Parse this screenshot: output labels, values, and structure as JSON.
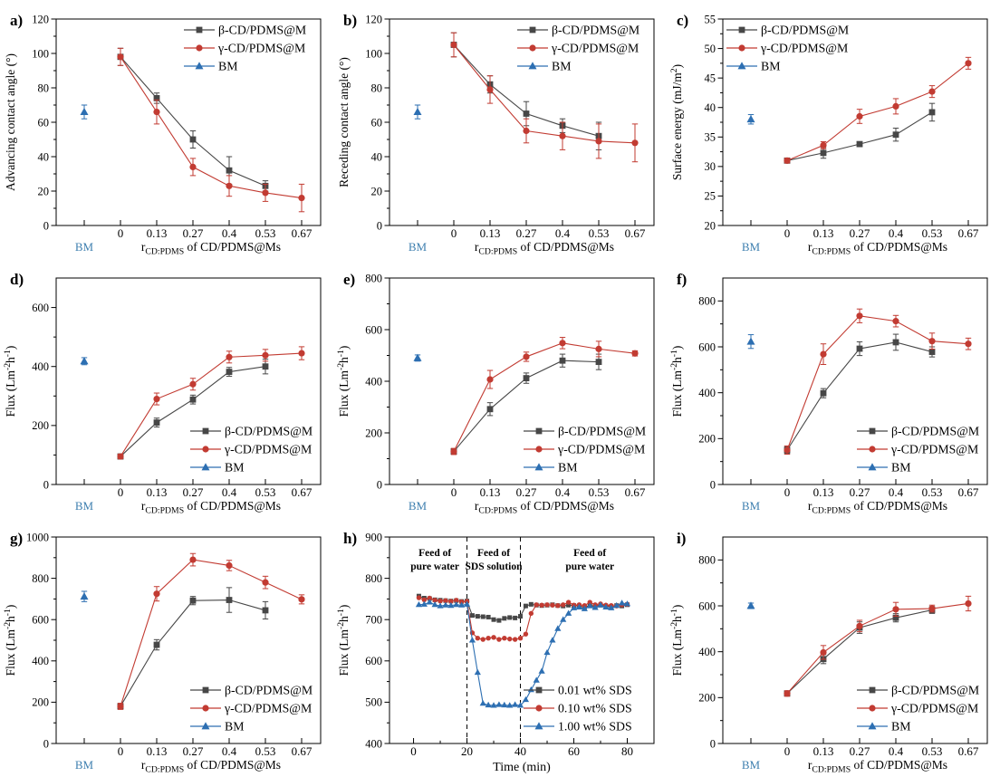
{
  "colors": {
    "beta": "#474747",
    "gamma": "#c23b32",
    "bm_marker": "#2d6fb2",
    "bm_tick_label": "#4080b0",
    "axis": "#000000"
  },
  "labels": {
    "ratio_xlabel": [
      {
        "t": "r"
      },
      {
        "t": "CD:PDMS",
        "sub": true
      },
      {
        "t": " of CD/PDMS@Ms"
      }
    ],
    "time_xlabel": [
      {
        "t": "Time (min)"
      }
    ],
    "flux_ylabel": [
      {
        "t": "Flux (Lm"
      },
      {
        "t": "-2",
        "sup": true
      },
      {
        "t": "h"
      },
      {
        "t": "-1",
        "sup": true
      },
      {
        "t": ")"
      }
    ],
    "advancing_ylabel": [
      {
        "t": "Advancing contact angle (°)"
      }
    ],
    "receding_ylabel": [
      {
        "t": "Receding contact angle (°)"
      }
    ],
    "surface_ylabel": [
      {
        "t": "Surface energy (mJ/m"
      },
      {
        "t": "2",
        "sup": true
      },
      {
        "t": ")"
      }
    ],
    "series_beta": "β-CD/PDMS@M",
    "series_gamma": "γ-CD/PDMS@M",
    "series_bm": "BM"
  },
  "chart_data": [
    {
      "panel_label": "a)",
      "type": "line",
      "axis": "ratio",
      "x_categories": [
        "BM",
        "0",
        "0.13",
        "0.27",
        "0.4",
        "0.53",
        "0.67"
      ],
      "xlabel_ref": "ratio_xlabel",
      "ylabel_ref": "advancing_ylabel",
      "ylim": [
        0,
        120
      ],
      "yticks": [
        0,
        20,
        40,
        60,
        80,
        100,
        120
      ],
      "legend_position": "top-right",
      "series": [
        {
          "name": "β-CD/PDMS@M",
          "marker": "square",
          "color_ref": "beta",
          "slots": [
            1,
            2,
            3,
            4,
            5
          ],
          "values": [
            98,
            74,
            50,
            32,
            23
          ],
          "errors": [
            5,
            3,
            5,
            8,
            3
          ]
        },
        {
          "name": "γ-CD/PDMS@M",
          "marker": "circle",
          "color_ref": "gamma",
          "slots": [
            1,
            2,
            3,
            4,
            5,
            6
          ],
          "values": [
            98,
            66,
            34,
            23,
            19,
            16
          ],
          "errors": [
            5,
            7,
            5,
            6,
            5,
            8
          ]
        },
        {
          "name": "BM",
          "marker": "triangle",
          "color_ref": "bm_marker",
          "slots": [
            0
          ],
          "values": [
            66
          ],
          "errors": [
            4
          ]
        }
      ]
    },
    {
      "panel_label": "b)",
      "type": "line",
      "axis": "ratio",
      "x_categories": [
        "BM",
        "0",
        "0.13",
        "0.27",
        "0.4",
        "0.53",
        "0.67"
      ],
      "xlabel_ref": "ratio_xlabel",
      "ylabel_ref": "receding_ylabel",
      "ylim": [
        0,
        120
      ],
      "yticks": [
        0,
        20,
        40,
        60,
        80,
        100,
        120
      ],
      "legend_position": "top-right",
      "series": [
        {
          "name": "β-CD/PDMS@M",
          "marker": "square",
          "color_ref": "beta",
          "slots": [
            1,
            2,
            3,
            4,
            5
          ],
          "values": [
            105,
            82,
            65,
            58,
            52
          ],
          "errors": [
            7,
            5,
            7,
            4,
            8
          ]
        },
        {
          "name": "γ-CD/PDMS@M",
          "marker": "circle",
          "color_ref": "gamma",
          "slots": [
            1,
            2,
            3,
            4,
            5,
            6
          ],
          "values": [
            105,
            79,
            55,
            52,
            49,
            48
          ],
          "errors": [
            7,
            8,
            7,
            8,
            10,
            11
          ]
        },
        {
          "name": "BM",
          "marker": "triangle",
          "color_ref": "bm_marker",
          "slots": [
            0
          ],
          "values": [
            66
          ],
          "errors": [
            4
          ]
        }
      ]
    },
    {
      "panel_label": "c)",
      "type": "line",
      "axis": "ratio",
      "x_categories": [
        "BM",
        "0",
        "0.13",
        "0.27",
        "0.4",
        "0.53",
        "0.67"
      ],
      "xlabel_ref": "ratio_xlabel",
      "ylabel_ref": "surface_ylabel",
      "ylim": [
        20,
        55
      ],
      "yticks": [
        20,
        25,
        30,
        35,
        40,
        45,
        50,
        55
      ],
      "legend_position": "top-left",
      "series": [
        {
          "name": "β-CD/PDMS@M",
          "marker": "square",
          "color_ref": "beta",
          "slots": [
            1,
            2,
            3,
            4,
            5
          ],
          "values": [
            31,
            32.3,
            33.8,
            35.4,
            39.2
          ],
          "errors": [
            0.4,
            0.9,
            0.4,
            1.1,
            1.5
          ]
        },
        {
          "name": "γ-CD/PDMS@M",
          "marker": "circle",
          "color_ref": "gamma",
          "slots": [
            1,
            2,
            3,
            4,
            5,
            6
          ],
          "values": [
            31,
            33.6,
            38.5,
            40.2,
            42.7,
            47.5
          ],
          "errors": [
            0.4,
            0.6,
            1.2,
            1.3,
            1.0,
            1.0
          ]
        },
        {
          "name": "BM",
          "marker": "triangle",
          "color_ref": "bm_marker",
          "slots": [
            0
          ],
          "values": [
            38
          ],
          "errors": [
            0.8
          ]
        }
      ]
    },
    {
      "panel_label": "d)",
      "type": "line",
      "axis": "ratio",
      "x_categories": [
        "BM",
        "0",
        "0.13",
        "0.27",
        "0.4",
        "0.53",
        "0.67"
      ],
      "xlabel_ref": "ratio_xlabel",
      "ylabel_ref": "flux_ylabel",
      "ylim": [
        0,
        700
      ],
      "yticks": [
        0,
        200,
        400,
        600
      ],
      "legend_position": "bottom-right",
      "series": [
        {
          "name": "β-CD/PDMS@M",
          "marker": "square",
          "color_ref": "beta",
          "slots": [
            1,
            2,
            3,
            4,
            5
          ],
          "values": [
            95,
            210,
            288,
            382,
            400
          ],
          "errors": [
            8,
            15,
            15,
            15,
            25
          ]
        },
        {
          "name": "γ-CD/PDMS@M",
          "marker": "circle",
          "color_ref": "gamma",
          "slots": [
            1,
            2,
            3,
            4,
            5,
            6
          ],
          "values": [
            95,
            290,
            340,
            432,
            438,
            445
          ],
          "errors": [
            8,
            20,
            20,
            20,
            20,
            22
          ]
        },
        {
          "name": "BM",
          "marker": "triangle",
          "color_ref": "bm_marker",
          "slots": [
            0
          ],
          "values": [
            418
          ],
          "errors": [
            12
          ]
        }
      ]
    },
    {
      "panel_label": "e)",
      "type": "line",
      "axis": "ratio",
      "x_categories": [
        "BM",
        "0",
        "0.13",
        "0.27",
        "0.4",
        "0.53",
        "0.67"
      ],
      "xlabel_ref": "ratio_xlabel",
      "ylabel_ref": "flux_ylabel",
      "ylim": [
        0,
        800
      ],
      "yticks": [
        0,
        200,
        400,
        600,
        800
      ],
      "legend_position": "bottom-right",
      "series": [
        {
          "name": "β-CD/PDMS@M",
          "marker": "square",
          "color_ref": "beta",
          "slots": [
            1,
            2,
            3,
            4,
            5
          ],
          "values": [
            128,
            292,
            412,
            480,
            475
          ],
          "errors": [
            10,
            25,
            20,
            25,
            30
          ]
        },
        {
          "name": "γ-CD/PDMS@M",
          "marker": "circle",
          "color_ref": "gamma",
          "slots": [
            1,
            2,
            3,
            4,
            5,
            6
          ],
          "values": [
            128,
            407,
            495,
            548,
            525,
            508
          ],
          "errors": [
            12,
            35,
            18,
            22,
            30,
            10
          ]
        },
        {
          "name": "BM",
          "marker": "triangle",
          "color_ref": "bm_marker",
          "slots": [
            0
          ],
          "values": [
            490
          ],
          "errors": [
            12
          ]
        }
      ]
    },
    {
      "panel_label": "f)",
      "type": "line",
      "axis": "ratio",
      "x_categories": [
        "BM",
        "0",
        "0.13",
        "0.27",
        "0.4",
        "0.53",
        "0.67"
      ],
      "xlabel_ref": "ratio_xlabel",
      "ylabel_ref": "flux_ylabel",
      "ylim": [
        0,
        900
      ],
      "yticks": [
        0,
        200,
        400,
        600,
        800
      ],
      "legend_position": "bottom-right",
      "series": [
        {
          "name": "β-CD/PDMS@M",
          "marker": "square",
          "color_ref": "beta",
          "slots": [
            1,
            2,
            3,
            4,
            5
          ],
          "values": [
            150,
            398,
            592,
            620,
            578
          ],
          "errors": [
            15,
            20,
            30,
            35,
            22
          ]
        },
        {
          "name": "γ-CD/PDMS@M",
          "marker": "circle",
          "color_ref": "gamma",
          "slots": [
            1,
            2,
            3,
            4,
            5,
            6
          ],
          "values": [
            150,
            568,
            735,
            712,
            625,
            613
          ],
          "errors": [
            18,
            45,
            30,
            25,
            35,
            25
          ]
        },
        {
          "name": "BM",
          "marker": "triangle",
          "color_ref": "bm_marker",
          "slots": [
            0
          ],
          "values": [
            623
          ],
          "errors": [
            30
          ]
        }
      ]
    },
    {
      "panel_label": "g)",
      "type": "line",
      "axis": "ratio",
      "x_categories": [
        "BM",
        "0",
        "0.13",
        "0.27",
        "0.4",
        "0.53",
        "0.67"
      ],
      "xlabel_ref": "ratio_xlabel",
      "ylabel_ref": "flux_ylabel",
      "ylim": [
        0,
        1000
      ],
      "yticks": [
        0,
        200,
        400,
        600,
        800,
        1000
      ],
      "legend_position": "bottom-right",
      "series": [
        {
          "name": "β-CD/PDMS@M",
          "marker": "square",
          "color_ref": "beta",
          "slots": [
            1,
            2,
            3,
            4,
            5
          ],
          "values": [
            180,
            478,
            692,
            695,
            645
          ],
          "errors": [
            12,
            25,
            20,
            60,
            42
          ]
        },
        {
          "name": "γ-CD/PDMS@M",
          "marker": "circle",
          "color_ref": "gamma",
          "slots": [
            1,
            2,
            3,
            4,
            5,
            6
          ],
          "values": [
            180,
            725,
            890,
            862,
            780,
            698
          ],
          "errors": [
            15,
            35,
            30,
            25,
            30,
            22
          ]
        },
        {
          "name": "BM",
          "marker": "triangle",
          "color_ref": "bm_marker",
          "slots": [
            0
          ],
          "values": [
            712
          ],
          "errors": [
            25
          ]
        }
      ]
    },
    {
      "panel_label": "h)",
      "type": "line",
      "axis": "time",
      "xlim": [
        -9,
        90
      ],
      "xticks": [
        0,
        20,
        40,
        60,
        80
      ],
      "x_minor": 10,
      "xlabel_ref": "time_xlabel",
      "ylabel_ref": "flux_ylabel",
      "ylim": [
        400,
        900
      ],
      "yticks": [
        400,
        500,
        600,
        700,
        800,
        900
      ],
      "legend_position": "bottom-right",
      "vlines": [
        20,
        40
      ],
      "annotations": [
        {
          "x": 8,
          "lines": [
            "Feed of",
            "pure water"
          ]
        },
        {
          "x": 30,
          "lines": [
            "Feed of",
            "SDS solution"
          ]
        },
        {
          "x": 66,
          "lines": [
            "Feed of",
            "pure water"
          ]
        }
      ],
      "x_shared": [
        2,
        4,
        6,
        8,
        10,
        12,
        14,
        16,
        18,
        20,
        22,
        24,
        26,
        28,
        30,
        32,
        34,
        36,
        38,
        40,
        42,
        44,
        46,
        48,
        50,
        52,
        54,
        56,
        58,
        60,
        62,
        64,
        66,
        68,
        70,
        72,
        74,
        76,
        78,
        80
      ],
      "series": [
        {
          "name": "0.01 wt% SDS",
          "marker": "square",
          "color_ref": "beta",
          "values": [
            757,
            752,
            751,
            748,
            747,
            746,
            745,
            746,
            744,
            745,
            710,
            708,
            707,
            706,
            700,
            698,
            703,
            705,
            704,
            708,
            733,
            737,
            735,
            734,
            735,
            736,
            734,
            733,
            735,
            734,
            733,
            730,
            734,
            733,
            735,
            733,
            732,
            734,
            733,
            736
          ]
        },
        {
          "name": "0.10 wt% SDS",
          "marker": "circle",
          "color_ref": "gamma",
          "values": [
            753,
            748,
            752,
            747,
            745,
            746,
            744,
            747,
            743,
            744,
            668,
            655,
            652,
            655,
            657,
            652,
            655,
            653,
            652,
            655,
            665,
            715,
            736,
            735,
            736,
            735,
            734,
            736,
            742,
            735,
            736,
            734,
            742,
            736,
            738,
            735,
            734,
            733,
            736,
            737
          ]
        },
        {
          "name": "1.00 wt% SDS",
          "marker": "triangle",
          "color_ref": "bm_marker",
          "values": [
            736,
            737,
            742,
            736,
            733,
            735,
            734,
            736,
            735,
            737,
            650,
            572,
            497,
            493,
            492,
            494,
            493,
            492,
            494,
            492,
            506,
            530,
            553,
            575,
            620,
            650,
            678,
            700,
            715,
            728,
            730,
            726,
            733,
            729,
            735,
            730,
            728,
            734,
            740,
            738
          ]
        }
      ]
    },
    {
      "panel_label": "i)",
      "type": "line",
      "axis": "ratio",
      "x_categories": [
        "BM",
        "0",
        "0.13",
        "0.27",
        "0.4",
        "0.53",
        "0.67"
      ],
      "xlabel_ref": "ratio_xlabel",
      "ylabel_ref": "flux_ylabel",
      "ylim": [
        0,
        900
      ],
      "yticks": [
        0,
        200,
        400,
        600,
        800
      ],
      "legend_position": "bottom-right",
      "series": [
        {
          "name": "β-CD/PDMS@M",
          "marker": "square",
          "color_ref": "beta",
          "slots": [
            1,
            2,
            3,
            4,
            5
          ],
          "values": [
            218,
            368,
            505,
            548,
            582
          ],
          "errors": [
            10,
            20,
            25,
            18,
            15
          ]
        },
        {
          "name": "γ-CD/PDMS@M",
          "marker": "circle",
          "color_ref": "gamma",
          "slots": [
            1,
            2,
            3,
            4,
            5,
            6
          ],
          "values": [
            218,
            397,
            512,
            585,
            588,
            610
          ],
          "errors": [
            12,
            30,
            25,
            30,
            15,
            32
          ]
        },
        {
          "name": "BM",
          "marker": "triangle",
          "color_ref": "bm_marker",
          "slots": [
            0
          ],
          "values": [
            600
          ],
          "errors": [
            12
          ]
        }
      ]
    }
  ]
}
